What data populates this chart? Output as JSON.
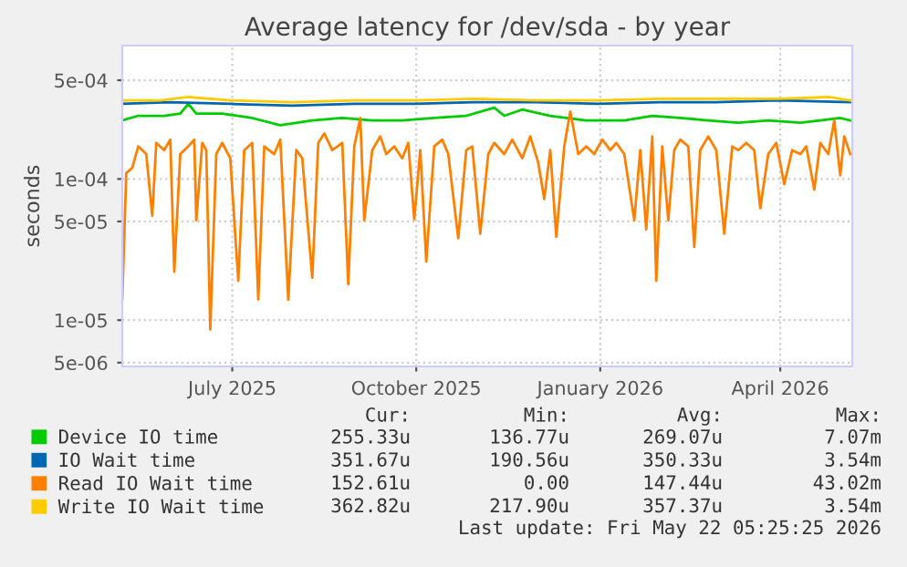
{
  "chart_data": {
    "type": "line",
    "title": "Average latency for /dev/sda - by year",
    "ylabel": "seconds",
    "log": "y",
    "xlim": [
      "2025-05-22",
      "2026-05-22"
    ],
    "xticks": [
      {
        "value": "2025-07-16",
        "label": "July 2025"
      },
      {
        "value": "2025-10-16",
        "label": "October 2025"
      },
      {
        "value": "2026-01-16",
        "label": "January 2026"
      },
      {
        "value": "2026-04-16",
        "label": "April 2026"
      }
    ],
    "ylim": [
      4.7e-06,
      0.00088
    ],
    "yticks": [
      {
        "value": 5e-06,
        "label": "5e-06"
      },
      {
        "value": 1e-05,
        "label": "1e-05"
      },
      {
        "value": 5e-05,
        "label": "5e-05"
      },
      {
        "value": 0.0001,
        "label": "1e-04"
      },
      {
        "value": 0.0005,
        "label": "5e-04"
      }
    ],
    "grid": true,
    "legend": "bottom",
    "marker": "none",
    "line_style": "solid",
    "series": [
      {
        "name": "Device IO time",
        "color": "#00cc00",
        "x": [
          "2025-05-22",
          "2025-05-30",
          "2025-06-12",
          "2025-06-20",
          "2025-06-24",
          "2025-06-28",
          "2025-07-11",
          "2025-07-26",
          "2025-08-09",
          "2025-08-25",
          "2025-09-09",
          "2025-09-24",
          "2025-10-09",
          "2025-10-25",
          "2025-11-10",
          "2025-11-24",
          "2025-11-29",
          "2025-12-08",
          "2025-12-22",
          "2026-01-09",
          "2026-01-28",
          "2026-02-11",
          "2026-02-25",
          "2026-03-11",
          "2026-03-26",
          "2026-04-10",
          "2026-04-26",
          "2026-05-06",
          "2026-05-16",
          "2026-05-21"
        ],
        "values": [
          0.00026,
          0.00028,
          0.00028,
          0.00029,
          0.00034,
          0.00029,
          0.00029,
          0.00027,
          0.00024,
          0.00026,
          0.00027,
          0.00026,
          0.00026,
          0.00027,
          0.00028,
          0.00032,
          0.00028,
          0.00031,
          0.00028,
          0.00026,
          0.00026,
          0.00028,
          0.00027,
          0.00026,
          0.00025,
          0.00026,
          0.00025,
          0.00026,
          0.00027,
          0.00026
        ]
      },
      {
        "name": "IO Wait time",
        "color": "#0066b3",
        "x": [
          "2025-05-22",
          "2025-06-15",
          "2025-07-15",
          "2025-08-15",
          "2025-09-15",
          "2025-10-15",
          "2025-11-15",
          "2025-12-15",
          "2026-01-15",
          "2026-02-15",
          "2026-03-15",
          "2026-04-15",
          "2026-05-21"
        ],
        "values": [
          0.00034,
          0.00035,
          0.00034,
          0.00033,
          0.00034,
          0.00034,
          0.00035,
          0.00035,
          0.00034,
          0.00035,
          0.00035,
          0.00036,
          0.00035
        ]
      },
      {
        "name": "Read IO Wait time",
        "color": "#ff8000",
        "x": [
          "2025-05-22",
          "2025-05-24",
          "2025-05-27",
          "2025-05-30",
          "2025-06-03",
          "2025-06-06",
          "2025-06-08",
          "2025-06-12",
          "2025-06-15",
          "2025-06-17",
          "2025-06-20",
          "2025-06-24",
          "2025-06-27",
          "2025-06-28",
          "2025-07-01",
          "2025-07-03",
          "2025-07-05",
          "2025-07-08",
          "2025-07-11",
          "2025-07-15",
          "2025-07-19",
          "2025-07-22",
          "2025-07-26",
          "2025-07-29",
          "2025-08-01",
          "2025-08-06",
          "2025-08-09",
          "2025-08-13",
          "2025-08-17",
          "2025-08-20",
          "2025-08-25",
          "2025-08-28",
          "2025-08-31",
          "2025-09-04",
          "2025-09-09",
          "2025-09-12",
          "2025-09-15",
          "2025-09-18",
          "2025-09-20",
          "2025-09-24",
          "2025-09-28",
          "2025-10-01",
          "2025-10-05",
          "2025-10-09",
          "2025-10-12",
          "2025-10-15",
          "2025-10-18",
          "2025-10-21",
          "2025-10-25",
          "2025-10-29",
          "2025-11-01",
          "2025-11-06",
          "2025-11-10",
          "2025-11-13",
          "2025-11-17",
          "2025-11-21",
          "2025-11-24",
          "2025-11-29",
          "2025-12-03",
          "2025-12-08",
          "2025-12-12",
          "2025-12-16",
          "2025-12-19",
          "2025-12-22",
          "2025-12-25",
          "2025-12-29",
          "2026-01-01",
          "2026-01-05",
          "2026-01-09",
          "2026-01-13",
          "2026-01-17",
          "2026-01-21",
          "2026-01-24",
          "2026-01-28",
          "2026-02-02",
          "2026-02-05",
          "2026-02-08",
          "2026-02-11",
          "2026-02-13",
          "2026-02-16",
          "2026-02-19",
          "2026-02-22",
          "2026-02-25",
          "2026-03-01",
          "2026-03-04",
          "2026-03-07",
          "2026-03-11",
          "2026-03-15",
          "2026-03-19",
          "2026-03-23",
          "2026-03-26",
          "2026-03-30",
          "2026-04-03",
          "2026-04-06",
          "2026-04-10",
          "2026-04-14",
          "2026-04-18",
          "2026-04-22",
          "2026-04-26",
          "2026-04-29",
          "2026-05-03",
          "2026-05-06",
          "2026-05-10",
          "2026-05-13",
          "2026-05-16",
          "2026-05-18",
          "2026-05-21"
        ],
        "values": [
          1.4e-05,
          0.00011,
          0.00012,
          0.00017,
          0.00015,
          5.5e-05,
          0.00018,
          0.00016,
          0.00019,
          2.2e-05,
          0.00015,
          0.00017,
          0.00019,
          5.1e-05,
          0.00018,
          0.00016,
          8.6e-06,
          0.00015,
          0.00018,
          0.00014,
          1.9e-05,
          0.00016,
          0.00018,
          1.4e-05,
          0.00017,
          0.00015,
          0.00019,
          1.4e-05,
          0.00016,
          0.00014,
          2e-05,
          0.00018,
          0.00021,
          0.00016,
          0.00018,
          1.8e-05,
          0.00017,
          0.00027,
          5.1e-05,
          0.00016,
          0.0002,
          0.00015,
          0.00017,
          0.00014,
          0.00018,
          5.2e-05,
          0.00016,
          2.6e-05,
          0.00017,
          0.00019,
          0.00015,
          3.8e-05,
          0.00016,
          0.00017,
          4.1e-05,
          0.00015,
          0.00018,
          0.00015,
          0.00019,
          0.00014,
          0.0002,
          0.00013,
          7.2e-05,
          0.00016,
          3.9e-05,
          0.00017,
          0.0003,
          0.00015,
          0.00017,
          0.00015,
          0.00019,
          0.00016,
          0.00018,
          0.00015,
          5.1e-05,
          0.00016,
          4.4e-05,
          0.0002,
          1.9e-05,
          0.00017,
          5.1e-05,
          0.00016,
          0.00019,
          0.00017,
          3.3e-05,
          0.00016,
          0.0002,
          0.00016,
          4.1e-05,
          0.00017,
          0.00016,
          0.00018,
          0.00016,
          6.2e-05,
          0.00015,
          0.00018,
          9.2e-05,
          0.00016,
          0.00015,
          0.00017,
          8.4e-05,
          0.00018,
          0.00015,
          0.00026,
          0.000106,
          0.0002,
          0.00015
        ]
      },
      {
        "name": "Write IO Wait time",
        "color": "#ffcc00",
        "x": [
          "2025-05-22",
          "2025-06-10",
          "2025-06-24",
          "2025-07-15",
          "2025-08-15",
          "2025-09-15",
          "2025-10-15",
          "2025-11-15",
          "2025-12-15",
          "2026-01-15",
          "2026-02-15",
          "2026-03-15",
          "2026-04-15",
          "2026-05-10",
          "2026-05-21"
        ],
        "values": [
          0.00036,
          0.00036,
          0.00038,
          0.00036,
          0.00035,
          0.00036,
          0.00036,
          0.00037,
          0.00036,
          0.00036,
          0.00037,
          0.00037,
          0.00037,
          0.00038,
          0.00036
        ]
      }
    ],
    "annotations": [
      "Cur:",
      "Min:",
      "Avg:",
      "Max:",
      "255.33u",
      "136.77u",
      "269.07u",
      "7.07m",
      "351.67u",
      "190.56u",
      "350.33u",
      "3.54m",
      "152.61u",
      "0.00",
      "147.44u",
      "43.02m",
      "362.82u",
      "217.90u",
      "357.37u",
      "3.54m",
      "Last update: Fri May 22 05:25:25 2026"
    ]
  }
}
